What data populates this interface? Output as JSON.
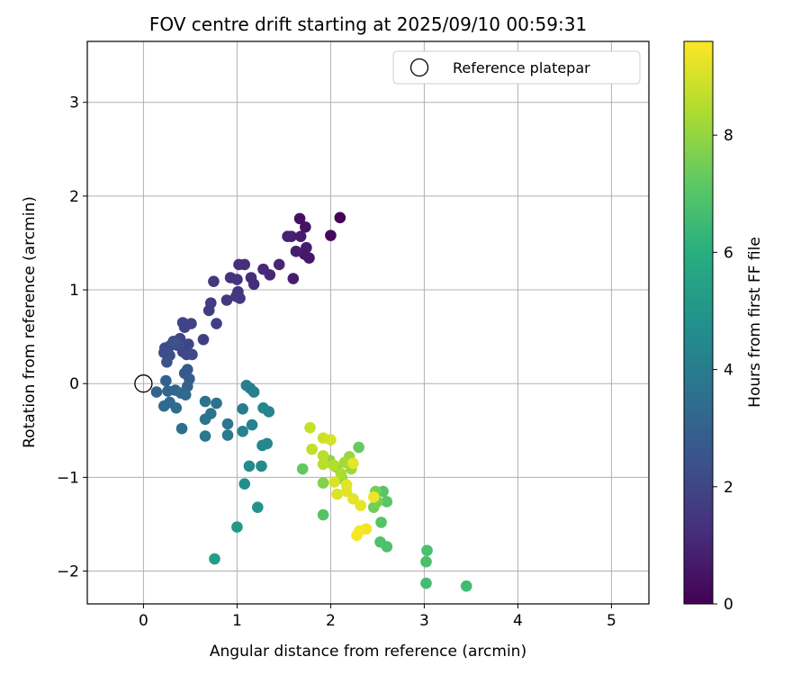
{
  "chart_data": {
    "type": "scatter",
    "title": "FOV centre drift starting at 2025/09/10 00:59:31",
    "xlabel": "Angular distance from reference (arcmin)",
    "ylabel": "Rotation from reference (arcmin)",
    "xlim": [
      -0.6,
      5.4
    ],
    "ylim": [
      -2.35,
      3.65
    ],
    "xticks": [
      0,
      1,
      2,
      3,
      4,
      5
    ],
    "yticks": [
      -2,
      -1,
      0,
      1,
      2,
      3
    ],
    "grid": true,
    "legend": {
      "position": "top-right",
      "entries": [
        "Reference platepar"
      ]
    },
    "reference_point": {
      "x": 0,
      "y": 0,
      "marker": "open-circle",
      "label": "Reference platepar"
    },
    "colorbar": {
      "label": "Hours from first FF file",
      "colormap": "viridis",
      "range": [
        0,
        9.6
      ],
      "ticks": [
        0,
        2,
        4,
        6,
        8
      ]
    },
    "points": [
      {
        "x": 2.1,
        "y": 1.77,
        "c": 0.1
      },
      {
        "x": 2.0,
        "y": 1.58,
        "c": 0.2
      },
      {
        "x": 1.67,
        "y": 1.76,
        "c": 0.4
      },
      {
        "x": 1.73,
        "y": 1.67,
        "c": 0.5
      },
      {
        "x": 1.77,
        "y": 1.34,
        "c": 0.6
      },
      {
        "x": 1.72,
        "y": 1.38,
        "c": 0.6
      },
      {
        "x": 1.74,
        "y": 1.45,
        "c": 0.7
      },
      {
        "x": 1.68,
        "y": 1.57,
        "c": 0.7
      },
      {
        "x": 1.63,
        "y": 1.41,
        "c": 0.8
      },
      {
        "x": 1.6,
        "y": 1.12,
        "c": 0.8
      },
      {
        "x": 1.58,
        "y": 1.57,
        "c": 0.8
      },
      {
        "x": 1.54,
        "y": 1.57,
        "c": 0.9
      },
      {
        "x": 1.45,
        "y": 1.27,
        "c": 1.0
      },
      {
        "x": 1.35,
        "y": 1.16,
        "c": 1.0
      },
      {
        "x": 1.28,
        "y": 1.22,
        "c": 1.1
      },
      {
        "x": 1.15,
        "y": 1.13,
        "c": 1.2
      },
      {
        "x": 1.18,
        "y": 1.06,
        "c": 1.2
      },
      {
        "x": 1.08,
        "y": 1.27,
        "c": 1.3
      },
      {
        "x": 1.02,
        "y": 1.27,
        "c": 1.3
      },
      {
        "x": 1.0,
        "y": 1.11,
        "c": 1.4
      },
      {
        "x": 0.93,
        "y": 1.13,
        "c": 1.4
      },
      {
        "x": 1.01,
        "y": 0.98,
        "c": 1.5
      },
      {
        "x": 0.99,
        "y": 0.93,
        "c": 1.5
      },
      {
        "x": 1.03,
        "y": 0.91,
        "c": 1.5
      },
      {
        "x": 0.89,
        "y": 0.89,
        "c": 1.6
      },
      {
        "x": 0.75,
        "y": 1.09,
        "c": 1.6
      },
      {
        "x": 0.72,
        "y": 0.86,
        "c": 1.7
      },
      {
        "x": 0.7,
        "y": 0.78,
        "c": 1.7
      },
      {
        "x": 0.78,
        "y": 0.64,
        "c": 1.8
      },
      {
        "x": 0.64,
        "y": 0.47,
        "c": 1.8
      },
      {
        "x": 0.42,
        "y": 0.65,
        "c": 1.9
      },
      {
        "x": 0.51,
        "y": 0.64,
        "c": 1.9
      },
      {
        "x": 0.44,
        "y": 0.6,
        "c": 1.9
      },
      {
        "x": 0.39,
        "y": 0.48,
        "c": 2.0
      },
      {
        "x": 0.48,
        "y": 0.42,
        "c": 2.0
      },
      {
        "x": 0.42,
        "y": 0.34,
        "c": 2.0
      },
      {
        "x": 0.46,
        "y": 0.31,
        "c": 2.1
      },
      {
        "x": 0.52,
        "y": 0.31,
        "c": 2.1
      },
      {
        "x": 0.32,
        "y": 0.45,
        "c": 2.1
      },
      {
        "x": 0.36,
        "y": 0.41,
        "c": 2.2
      },
      {
        "x": 0.28,
        "y": 0.4,
        "c": 2.2
      },
      {
        "x": 0.23,
        "y": 0.38,
        "c": 2.2
      },
      {
        "x": 0.22,
        "y": 0.33,
        "c": 2.3
      },
      {
        "x": 0.28,
        "y": 0.3,
        "c": 2.3
      },
      {
        "x": 0.25,
        "y": 0.23,
        "c": 2.4
      },
      {
        "x": 0.33,
        "y": 0.44,
        "c": 2.4
      },
      {
        "x": 0.44,
        "y": 0.11,
        "c": 2.6
      },
      {
        "x": 0.47,
        "y": 0.15,
        "c": 2.7
      },
      {
        "x": 0.49,
        "y": 0.05,
        "c": 2.8
      },
      {
        "x": 0.47,
        "y": -0.03,
        "c": 2.9
      },
      {
        "x": 0.24,
        "y": 0.03,
        "c": 3.0
      },
      {
        "x": 0.14,
        "y": -0.09,
        "c": 3.0
      },
      {
        "x": 0.26,
        "y": -0.08,
        "c": 3.1
      },
      {
        "x": 0.34,
        "y": -0.07,
        "c": 3.1
      },
      {
        "x": 0.4,
        "y": -0.1,
        "c": 3.2
      },
      {
        "x": 0.45,
        "y": -0.12,
        "c": 3.2
      },
      {
        "x": 0.22,
        "y": -0.24,
        "c": 3.3
      },
      {
        "x": 0.28,
        "y": -0.2,
        "c": 3.3
      },
      {
        "x": 0.35,
        "y": -0.26,
        "c": 3.4
      },
      {
        "x": 0.41,
        "y": -0.48,
        "c": 3.5
      },
      {
        "x": 0.66,
        "y": -0.19,
        "c": 3.6
      },
      {
        "x": 0.78,
        "y": -0.21,
        "c": 3.6
      },
      {
        "x": 0.72,
        "y": -0.32,
        "c": 3.7
      },
      {
        "x": 0.66,
        "y": -0.38,
        "c": 3.7
      },
      {
        "x": 0.66,
        "y": -0.56,
        "c": 3.8
      },
      {
        "x": 0.9,
        "y": -0.43,
        "c": 3.8
      },
      {
        "x": 0.9,
        "y": -0.55,
        "c": 3.9
      },
      {
        "x": 1.06,
        "y": -0.27,
        "c": 4.0
      },
      {
        "x": 1.1,
        "y": -0.02,
        "c": 4.1
      },
      {
        "x": 1.14,
        "y": -0.05,
        "c": 4.1
      },
      {
        "x": 1.18,
        "y": -0.09,
        "c": 4.2
      },
      {
        "x": 1.06,
        "y": -0.51,
        "c": 4.3
      },
      {
        "x": 1.16,
        "y": -0.44,
        "c": 4.3
      },
      {
        "x": 1.28,
        "y": -0.26,
        "c": 4.4
      },
      {
        "x": 1.34,
        "y": -0.3,
        "c": 4.4
      },
      {
        "x": 1.32,
        "y": -0.64,
        "c": 4.5
      },
      {
        "x": 1.27,
        "y": -0.66,
        "c": 4.5
      },
      {
        "x": 1.13,
        "y": -0.88,
        "c": 4.6
      },
      {
        "x": 1.26,
        "y": -0.88,
        "c": 4.6
      },
      {
        "x": 1.08,
        "y": -1.07,
        "c": 4.7
      },
      {
        "x": 1.22,
        "y": -1.32,
        "c": 4.9
      },
      {
        "x": 1.0,
        "y": -1.53,
        "c": 5.1
      },
      {
        "x": 0.76,
        "y": -1.87,
        "c": 5.4
      },
      {
        "x": 3.45,
        "y": -2.16,
        "c": 6.6
      },
      {
        "x": 3.02,
        "y": -2.13,
        "c": 6.7
      },
      {
        "x": 3.02,
        "y": -1.9,
        "c": 6.8
      },
      {
        "x": 3.03,
        "y": -1.78,
        "c": 6.8
      },
      {
        "x": 2.6,
        "y": -1.74,
        "c": 6.9
      },
      {
        "x": 2.53,
        "y": -1.69,
        "c": 6.9
      },
      {
        "x": 2.54,
        "y": -1.48,
        "c": 7.0
      },
      {
        "x": 1.92,
        "y": -1.4,
        "c": 7.0
      },
      {
        "x": 2.6,
        "y": -1.26,
        "c": 7.1
      },
      {
        "x": 2.56,
        "y": -1.15,
        "c": 7.1
      },
      {
        "x": 1.7,
        "y": -0.91,
        "c": 7.2
      },
      {
        "x": 2.3,
        "y": -0.68,
        "c": 7.3
      },
      {
        "x": 2.46,
        "y": -1.32,
        "c": 7.5
      },
      {
        "x": 2.48,
        "y": -1.15,
        "c": 7.6
      },
      {
        "x": 2.5,
        "y": -1.26,
        "c": 7.6
      },
      {
        "x": 1.92,
        "y": -1.06,
        "c": 7.8
      },
      {
        "x": 1.99,
        "y": -0.82,
        "c": 7.9
      },
      {
        "x": 2.06,
        "y": -0.89,
        "c": 8.0
      },
      {
        "x": 2.12,
        "y": -1.01,
        "c": 8.0
      },
      {
        "x": 2.2,
        "y": -0.78,
        "c": 8.1
      },
      {
        "x": 2.22,
        "y": -0.91,
        "c": 8.2
      },
      {
        "x": 2.15,
        "y": -0.84,
        "c": 8.3
      },
      {
        "x": 2.11,
        "y": -0.96,
        "c": 8.4
      },
      {
        "x": 2.03,
        "y": -0.87,
        "c": 8.5
      },
      {
        "x": 1.92,
        "y": -0.86,
        "c": 8.6
      },
      {
        "x": 1.92,
        "y": -0.77,
        "c": 8.6
      },
      {
        "x": 1.8,
        "y": -0.7,
        "c": 8.7
      },
      {
        "x": 1.78,
        "y": -0.47,
        "c": 8.8
      },
      {
        "x": 1.92,
        "y": -0.58,
        "c": 8.9
      },
      {
        "x": 2.0,
        "y": -0.6,
        "c": 9.0
      },
      {
        "x": 2.04,
        "y": -1.05,
        "c": 9.1
      },
      {
        "x": 2.07,
        "y": -1.18,
        "c": 9.1
      },
      {
        "x": 2.17,
        "y": -1.08,
        "c": 9.2
      },
      {
        "x": 2.17,
        "y": -1.15,
        "c": 9.2
      },
      {
        "x": 2.24,
        "y": -1.23,
        "c": 9.2
      },
      {
        "x": 2.24,
        "y": -0.85,
        "c": 9.3
      },
      {
        "x": 2.32,
        "y": -1.3,
        "c": 9.3
      },
      {
        "x": 2.46,
        "y": -1.21,
        "c": 9.4
      },
      {
        "x": 2.38,
        "y": -1.55,
        "c": 9.4
      },
      {
        "x": 2.31,
        "y": -1.57,
        "c": 9.5
      },
      {
        "x": 2.28,
        "y": -1.62,
        "c": 9.5
      }
    ]
  }
}
